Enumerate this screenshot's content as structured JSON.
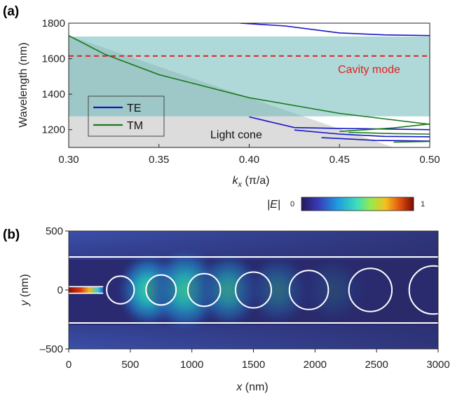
{
  "colors": {
    "te": "#1515c8",
    "tm": "#1a7a1a",
    "cavity": "#e02020",
    "band": "#a8d8d8",
    "lightcone": "#dcdcdc",
    "ring": "#ffffff"
  },
  "chart_data": [
    {
      "panel_label": "(a)",
      "type": "line",
      "ylabel": "Wavelength (nm)",
      "xlabel_main": "k",
      "xlabel_sub": "x",
      "xlabel_unit": " (π/a)",
      "xlim": [
        0.3,
        0.5
      ],
      "ylim": [
        1100,
        1800
      ],
      "xticks": [
        "0.30",
        "0.35",
        "0.40",
        "0.45",
        "0.50"
      ],
      "xtick_values": [
        0.3,
        0.35,
        0.4,
        0.45,
        0.5
      ],
      "yticks": [
        "1200",
        "1400",
        "1600",
        "1800"
      ],
      "ytick_values": [
        1200,
        1400,
        1600,
        1800
      ],
      "bandgap": [
        1275,
        1725
      ],
      "cavity_mode": {
        "wavelength": 1615,
        "label": "Cavity mode"
      },
      "light_cone": {
        "label": "Light cone",
        "boundary": [
          [
            0.3,
            1730
          ],
          [
            0.48,
            1100
          ]
        ]
      },
      "legend": [
        "TE",
        "TM"
      ],
      "series": [
        {
          "name": "TE",
          "style": "te",
          "points": [
            [
              0.395,
              1800
            ],
            [
              0.42,
              1784
            ],
            [
              0.45,
              1745
            ],
            [
              0.475,
              1734
            ],
            [
              0.5,
              1730
            ]
          ]
        },
        {
          "name": "TE",
          "style": "te",
          "points": [
            [
              0.4,
              1272
            ],
            [
              0.425,
              1212
            ],
            [
              0.45,
              1207
            ],
            [
              0.5,
              1200
            ]
          ]
        },
        {
          "name": "TE",
          "style": "te",
          "points": [
            [
              0.425,
              1198
            ],
            [
              0.45,
              1175
            ],
            [
              0.475,
              1162
            ],
            [
              0.5,
              1160
            ]
          ]
        },
        {
          "name": "TE",
          "style": "te",
          "points": [
            [
              0.44,
              1155
            ],
            [
              0.47,
              1140
            ],
            [
              0.5,
              1136
            ]
          ]
        },
        {
          "name": "TM",
          "style": "tm",
          "points": [
            [
              0.3,
              1730
            ],
            [
              0.32,
              1625
            ],
            [
              0.35,
              1510
            ],
            [
              0.4,
              1380
            ],
            [
              0.45,
              1292
            ],
            [
              0.5,
              1230
            ]
          ]
        },
        {
          "name": "TM",
          "style": "tm",
          "points": [
            [
              0.45,
              1190
            ],
            [
              0.48,
              1210
            ],
            [
              0.5,
              1232
            ]
          ]
        },
        {
          "name": "TM",
          "style": "tm",
          "points": [
            [
              0.455,
              1185
            ],
            [
              0.48,
              1178
            ],
            [
              0.5,
              1175
            ]
          ]
        },
        {
          "name": "TM",
          "style": "tm",
          "points": [
            [
              0.48,
              1130
            ],
            [
              0.5,
              1134
            ]
          ]
        }
      ]
    },
    {
      "panel_label": "(b)",
      "type": "heatmap",
      "xlabel_main": "x",
      "xlabel_unit": " (nm)",
      "ylabel_main": "y",
      "ylabel_unit": " (nm)",
      "xlim": [
        0,
        3000
      ],
      "ylim": [
        -500,
        500
      ],
      "xticks": [
        "0",
        "500",
        "1000",
        "1500",
        "2000",
        "2500",
        "3000"
      ],
      "xtick_values": [
        0,
        500,
        1000,
        1500,
        2000,
        2500,
        3000
      ],
      "yticks": [
        "500",
        "0",
        "–500"
      ],
      "ytick_values": [
        500,
        0,
        -500
      ],
      "colorbar": {
        "label_main": "|E|",
        "min": "0",
        "max": "1"
      },
      "waveguide_edges_y": [
        280,
        -280
      ],
      "input_guide": {
        "x_end": 280,
        "half_width": 28
      },
      "holes": [
        {
          "x": 420,
          "r": 112
        },
        {
          "x": 750,
          "r": 122
        },
        {
          "x": 1100,
          "r": 132
        },
        {
          "x": 1500,
          "r": 145
        },
        {
          "x": 1950,
          "r": 158
        },
        {
          "x": 2450,
          "r": 175
        },
        {
          "x": 2960,
          "r": 195
        }
      ]
    }
  ]
}
